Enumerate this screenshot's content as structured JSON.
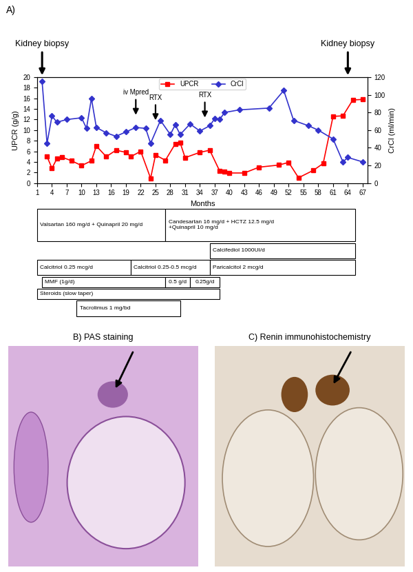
{
  "chart_data": {
    "type": "line",
    "title": "A)",
    "x_label": "Months",
    "y_label": "UPCR (g/g)",
    "y2_label": "CrCl (ml/min)",
    "xlim": [
      1,
      68
    ],
    "xticks": [
      1,
      4,
      7,
      10,
      13,
      16,
      19,
      22,
      25,
      28,
      31,
      34,
      37,
      40,
      43,
      46,
      49,
      52,
      55,
      58,
      61,
      64,
      67
    ],
    "ylim": [
      0,
      20
    ],
    "yticks": [
      0,
      2,
      4,
      6,
      8,
      10,
      12,
      14,
      16,
      18,
      20
    ],
    "y2lim": [
      0,
      120
    ],
    "y2ticks": [
      0,
      20,
      40,
      60,
      80,
      100,
      120
    ],
    "grid": false,
    "legend": "upper center",
    "series": [
      {
        "name": "UPCR",
        "color": "#ff0000",
        "marker": "square",
        "line_style": "solid",
        "axis": "y",
        "x": [
          3,
          4,
          5,
          6,
          8,
          10,
          12,
          13,
          15,
          17,
          19,
          20,
          22,
          24,
          25,
          27,
          29,
          30,
          31,
          34,
          36,
          38,
          39,
          40,
          43,
          46,
          50,
          52,
          54,
          57,
          59,
          61,
          63,
          65,
          67
        ],
        "values": [
          5.0,
          2.8,
          4.6,
          4.9,
          4.2,
          3.3,
          4.2,
          7.0,
          5.0,
          6.2,
          5.8,
          5.0,
          6.0,
          0.9,
          5.3,
          4.3,
          7.4,
          7.6,
          4.8,
          5.8,
          6.2,
          2.3,
          2.1,
          1.9,
          1.9,
          3.0,
          3.4,
          3.9,
          1.0,
          2.4,
          3.7,
          12.6,
          12.7,
          15.7,
          15.8
        ]
      },
      {
        "name": "CrCl",
        "color": "#3333cc",
        "marker": "diamond",
        "line_style": "solid",
        "axis": "y2",
        "x": [
          2,
          3,
          4,
          5,
          7,
          10,
          11,
          12,
          13,
          15,
          17,
          19,
          21,
          23,
          24,
          26,
          28,
          29,
          30,
          32,
          34,
          36,
          37,
          38,
          39,
          42,
          48,
          51,
          53,
          56,
          58,
          61,
          63,
          64,
          67
        ],
        "values": [
          115,
          45,
          76,
          69,
          72,
          74,
          62,
          96,
          63,
          57,
          53,
          58,
          63,
          62,
          45,
          71,
          55,
          66,
          55,
          67,
          59,
          65,
          73,
          72,
          80,
          83,
          85,
          105,
          71,
          65,
          60,
          50,
          24,
          29,
          24
        ]
      }
    ],
    "annotations": [
      {
        "text": "Kidney biopsy",
        "x": 2,
        "y": 20
      },
      {
        "text": "iv Mpred",
        "x": 21,
        "y": 12.5
      },
      {
        "text": "RTX",
        "x": 25,
        "y": 11.5
      },
      {
        "text": "RTX",
        "x": 35,
        "y": 12.0
      },
      {
        "text": "Kidney biopsy",
        "x": 64,
        "y": 20
      }
    ]
  },
  "treatment_timeline": {
    "rows": [
      [
        {
          "label": "Valsartan 160 mg/d + Quinapril 20 mg/d",
          "start": 1,
          "end": 27
        },
        {
          "label": "Candesartan 16 mg/d + HCTZ 12.5 mg/d\n+Quinapril 10 mg/d",
          "start": 27,
          "end": 65.5
        }
      ],
      [
        {
          "label": "Calcifediol 1000UI/d",
          "start": 36,
          "end": 65.5
        }
      ],
      [
        {
          "label": "Calcitriol 0.25 mcg/d",
          "start": 1,
          "end": 20
        },
        {
          "label": "Calcitriol 0.25-0.5 mcg/d",
          "start": 20,
          "end": 36
        },
        {
          "label": "Paricalcitol 2 mcg/d",
          "start": 36,
          "end": 65.5
        }
      ],
      [
        {
          "label": "MMF (1g/d)",
          "start": 2,
          "end": 27
        },
        {
          "label": "0.5 g/d",
          "start": 27,
          "end": 32
        },
        {
          "label": "0.25g/d",
          "start": 32,
          "end": 38
        }
      ],
      [
        {
          "label": "Steroids (slow taper)",
          "start": 1,
          "end": 38
        }
      ],
      [
        {
          "label": "Tacrolimus 1 mg/bd",
          "start": 9,
          "end": 30
        }
      ]
    ]
  },
  "panels": [
    {
      "label": "B) PAS staining"
    },
    {
      "label": "C) Renin immunohistochemistry"
    }
  ]
}
